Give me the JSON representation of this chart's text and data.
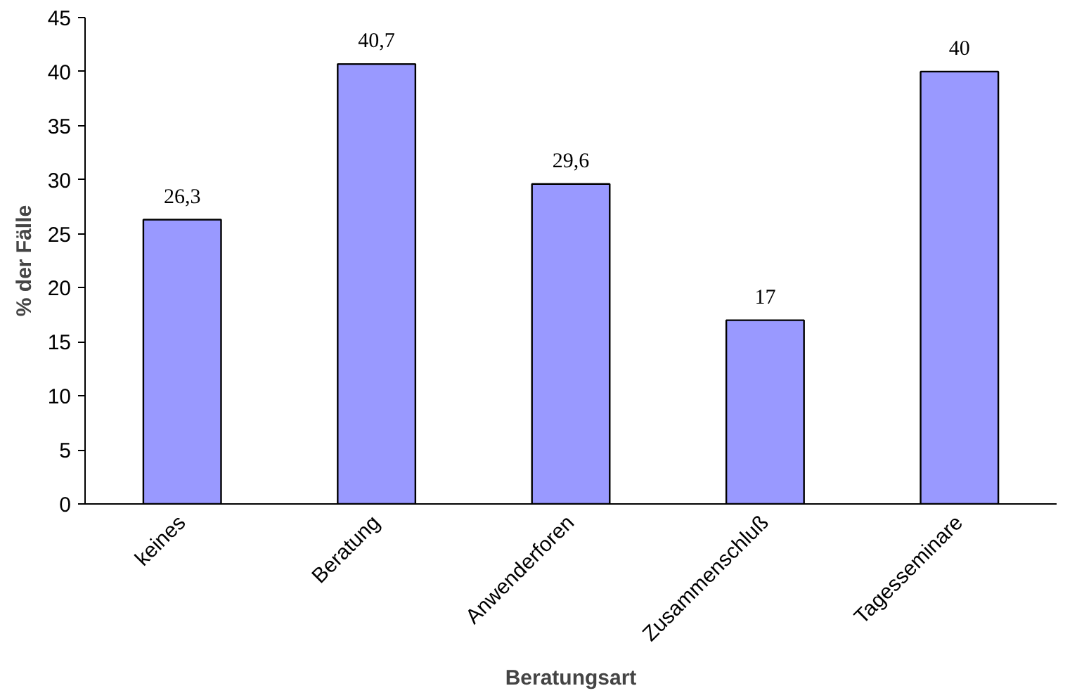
{
  "chart_data": {
    "type": "bar",
    "xlabel": "Beratungsart",
    "ylabel": "% der Fälle",
    "categories": [
      "keines",
      "Beratung",
      "Anwenderforen",
      "Zusammenschluß",
      "Tagesseminare"
    ],
    "values": [
      26.3,
      40.7,
      29.6,
      17,
      40
    ],
    "value_labels": [
      "26,3",
      "40,7",
      "29,6",
      "17",
      "40"
    ],
    "color": "#9999ff",
    "ylim": [
      0,
      45
    ],
    "yticks": [
      0,
      5,
      10,
      15,
      20,
      25,
      30,
      35,
      40,
      45
    ],
    "grid": false
  }
}
